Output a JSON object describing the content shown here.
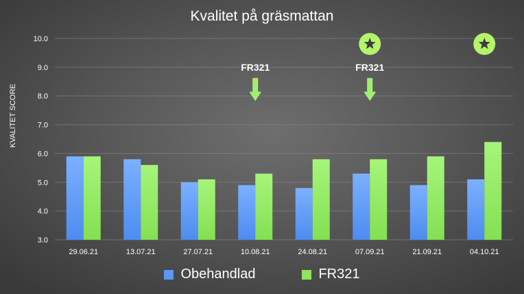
{
  "chart_data": {
    "type": "bar",
    "title": "Kvalitet på gräsmattan",
    "xlabel": "",
    "ylabel": "KVALITET SCORE",
    "ylim": [
      3.0,
      10.0
    ],
    "yticks": [
      "3.0",
      "4.0",
      "5.0",
      "6.0",
      "7.0",
      "8.0",
      "9.0",
      "10.0"
    ],
    "grid": true,
    "legend_placement": "bottom",
    "categories": [
      "29.06.21",
      "13.07.21",
      "27.07.21",
      "10.08.21",
      "24.08.21",
      "07.09.21",
      "21.09.21",
      "04.10.21"
    ],
    "series": [
      {
        "name": "Obehandlad",
        "color": "#6ea4ff",
        "values": [
          5.9,
          5.8,
          5.0,
          4.9,
          4.8,
          5.3,
          4.9,
          5.1
        ]
      },
      {
        "name": "FR321",
        "color": "#9cf06a",
        "values": [
          5.9,
          5.6,
          5.1,
          5.3,
          5.8,
          5.8,
          5.9,
          6.4
        ]
      }
    ],
    "annotations": [
      {
        "type": "arrow",
        "label": "FR321",
        "category": "10.08.21"
      },
      {
        "type": "arrow",
        "label": "FR321",
        "category": "07.09.21"
      },
      {
        "type": "star",
        "category": "07.09.21"
      },
      {
        "type": "star",
        "category": "04.10.21"
      }
    ]
  }
}
